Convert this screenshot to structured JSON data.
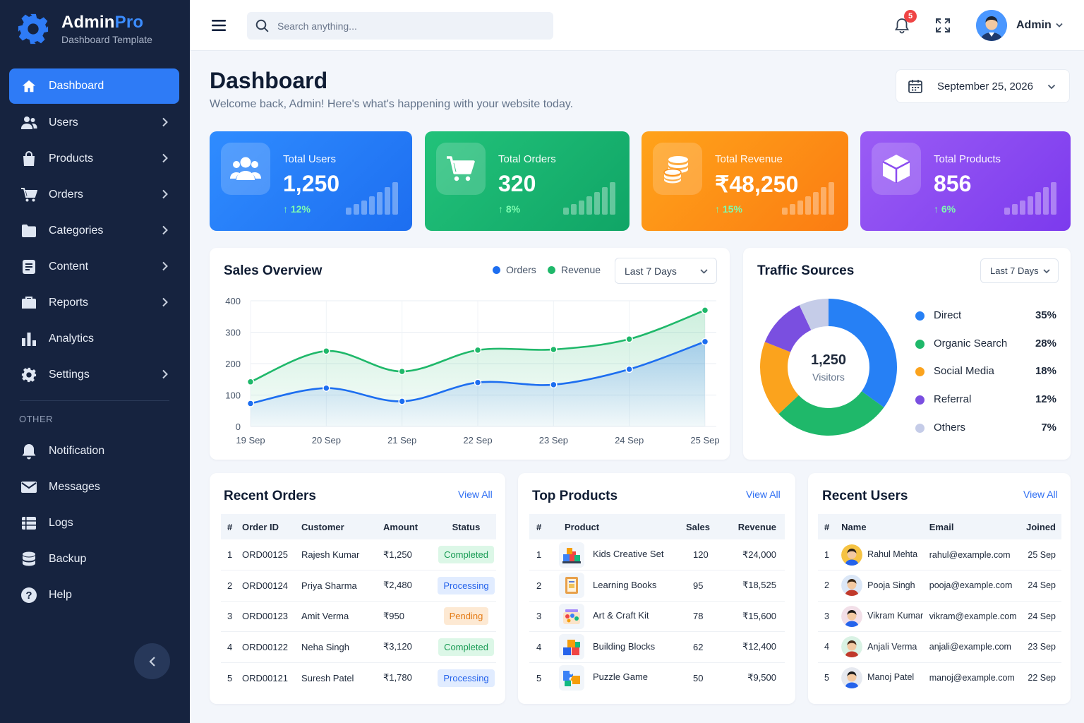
{
  "brand": {
    "name": "Admin",
    "name_accent": "Pro",
    "subtitle": "Dashboard Template"
  },
  "sidebar": {
    "items": [
      {
        "label": "Dashboard",
        "icon": "home-icon",
        "active": true,
        "has_children": false
      },
      {
        "label": "Users",
        "icon": "users-icon",
        "has_children": true
      },
      {
        "label": "Products",
        "icon": "bag-icon",
        "has_children": true
      },
      {
        "label": "Orders",
        "icon": "cart-icon",
        "has_children": true
      },
      {
        "label": "Categories",
        "icon": "folder-icon",
        "has_children": true
      },
      {
        "label": "Content",
        "icon": "document-icon",
        "has_children": true
      },
      {
        "label": "Reports",
        "icon": "briefcase-icon",
        "has_children": true
      },
      {
        "label": "Analytics",
        "icon": "bar-chart-icon",
        "has_children": false
      },
      {
        "label": "Settings",
        "icon": "gear-icon",
        "has_children": true
      }
    ],
    "other_heading": "OTHER",
    "other_items": [
      {
        "label": "Notification",
        "icon": "bell-icon"
      },
      {
        "label": "Messages",
        "icon": "mail-icon"
      },
      {
        "label": "Logs",
        "icon": "list-icon"
      },
      {
        "label": "Backup",
        "icon": "database-icon"
      },
      {
        "label": "Help",
        "icon": "help-icon"
      }
    ]
  },
  "topbar": {
    "search_placeholder": "Search anything...",
    "notification_count": "5",
    "user_name": "Admin"
  },
  "header": {
    "title": "Dashboard",
    "subtitle": "Welcome back, Admin! Here's what's happening with your website today.",
    "date": "September 25, 2026"
  },
  "stats": [
    {
      "label": "Total Users",
      "value": "1,250",
      "change": "12%",
      "color_from": "#2f8cff",
      "color_to": "#1d6ef0",
      "icon": "users-icon"
    },
    {
      "label": "Total Orders",
      "value": "320",
      "change": "8%",
      "color_from": "#22c27a",
      "color_to": "#10a566",
      "icon": "cart-icon"
    },
    {
      "label": "Total Revenue",
      "value": "₹48,250",
      "change": "15%",
      "color_from": "#ffa31a",
      "color_to": "#fb7c12",
      "icon": "coins-icon"
    },
    {
      "label": "Total Products",
      "value": "856",
      "change": "6%",
      "color_from": "#9a5cf5",
      "color_to": "#7c3aed",
      "icon": "box-icon"
    }
  ],
  "sales": {
    "title": "Sales Overview",
    "legend": [
      "Orders",
      "Revenue"
    ],
    "period": "Last 7 Days"
  },
  "traffic": {
    "title": "Traffic Sources",
    "period": "Last 7 Days",
    "center_value": "1,250",
    "center_label": "Visitors",
    "sources": [
      {
        "name": "Direct",
        "pct": "35%",
        "value": 35,
        "color": "#2680f5"
      },
      {
        "name": "Organic Search",
        "pct": "28%",
        "value": 28,
        "color": "#1fb86a"
      },
      {
        "name": "Social Media",
        "pct": "18%",
        "value": 18,
        "color": "#fba31d"
      },
      {
        "name": "Referral",
        "pct": "12%",
        "value": 12,
        "color": "#7a4fe0"
      },
      {
        "name": "Others",
        "pct": "7%",
        "value": 7,
        "color": "#c5cce8"
      }
    ]
  },
  "chart_data": {
    "type": "area",
    "categories": [
      "19 Sep",
      "20 Sep",
      "21 Sep",
      "22 Sep",
      "23 Sep",
      "24 Sep",
      "25 Sep"
    ],
    "series": [
      {
        "name": "Orders",
        "values": [
          73,
          122,
          80,
          140,
          133,
          182,
          270
        ],
        "color": "#1d6ef0"
      },
      {
        "name": "Revenue",
        "values": [
          142,
          240,
          175,
          243,
          245,
          278,
          370
        ],
        "color": "#1fb86a"
      }
    ],
    "ylim": [
      0,
      400
    ],
    "yticks": [
      "0",
      "100",
      "200",
      "300",
      "400"
    ],
    "grid": true
  },
  "orders": {
    "title": "Recent Orders",
    "view_all": "View All",
    "columns": [
      "#",
      "Order ID",
      "Customer",
      "Amount",
      "Status"
    ],
    "rows": [
      {
        "n": "1",
        "id": "ORD00125",
        "customer": "Rajesh Kumar",
        "amount": "₹1,250",
        "status": "Completed",
        "kind": "completed"
      },
      {
        "n": "2",
        "id": "ORD00124",
        "customer": "Priya Sharma",
        "amount": "₹2,480",
        "status": "Processing",
        "kind": "processing"
      },
      {
        "n": "3",
        "id": "ORD00123",
        "customer": "Amit Verma",
        "amount": "₹950",
        "status": "Pending",
        "kind": "pending"
      },
      {
        "n": "4",
        "id": "ORD00122",
        "customer": "Neha Singh",
        "amount": "₹3,120",
        "status": "Completed",
        "kind": "completed"
      },
      {
        "n": "5",
        "id": "ORD00121",
        "customer": "Suresh Patel",
        "amount": "₹1,780",
        "status": "Processing",
        "kind": "processing"
      }
    ]
  },
  "products": {
    "title": "Top Products",
    "view_all": "View All",
    "columns": [
      "#",
      "Product",
      "Sales",
      "Revenue"
    ],
    "rows": [
      {
        "n": "1",
        "name": "Kids Creative Set",
        "sales": "120",
        "revenue": "₹24,000",
        "icon": "paint-set-icon"
      },
      {
        "n": "2",
        "name": "Learning Books",
        "sales": "95",
        "revenue": "₹18,525",
        "icon": "book-icon"
      },
      {
        "n": "3",
        "name": "Art & Craft Kit",
        "sales": "78",
        "revenue": "₹15,600",
        "icon": "craft-kit-icon"
      },
      {
        "n": "4",
        "name": "Building Blocks",
        "sales": "62",
        "revenue": "₹12,400",
        "icon": "blocks-icon"
      },
      {
        "n": "5",
        "name": "Puzzle Game",
        "sales": "50",
        "revenue": "₹9,500",
        "icon": "puzzle-icon"
      }
    ]
  },
  "users": {
    "title": "Recent Users",
    "view_all": "View All",
    "columns": [
      "#",
      "Name",
      "Email",
      "Joined"
    ],
    "rows": [
      {
        "n": "1",
        "name": "Rahul Mehta",
        "email": "rahul@example.com",
        "joined": "25 Sep",
        "color": "#f6c343"
      },
      {
        "n": "2",
        "name": "Pooja Singh",
        "email": "pooja@example.com",
        "joined": "24 Sep",
        "color": "#dbe7f7"
      },
      {
        "n": "3",
        "name": "Vikram Kumar",
        "email": "vikram@example.com",
        "joined": "24 Sep",
        "color": "#f2dfe8"
      },
      {
        "n": "4",
        "name": "Anjali Verma",
        "email": "anjali@example.com",
        "joined": "23 Sep",
        "color": "#d9f2e4"
      },
      {
        "n": "5",
        "name": "Manoj Patel",
        "email": "manoj@example.com",
        "joined": "22 Sep",
        "color": "#e6e9f0"
      }
    ]
  }
}
